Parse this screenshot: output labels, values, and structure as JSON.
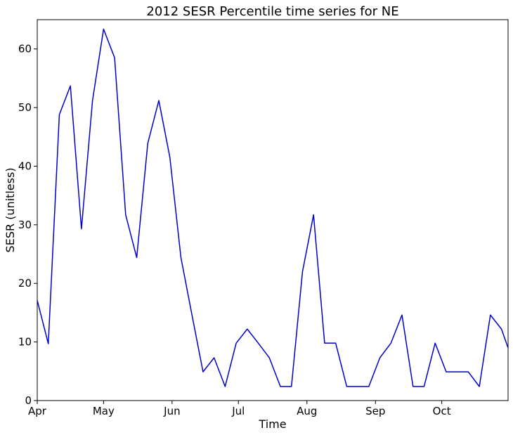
{
  "chart_data": {
    "type": "line",
    "title": "2012 SESR Percentile time series for NE",
    "xlabel": "Time",
    "ylabel": "SESR (unitless)",
    "ylim": [
      0,
      65
    ],
    "xlim": [
      "2012-04-01",
      "2012-10-31"
    ],
    "grid": false,
    "line_color": "#0000cc",
    "x_ticks": [
      {
        "label": "Apr",
        "date": "2012-04-01"
      },
      {
        "label": "May",
        "date": "2012-05-01"
      },
      {
        "label": "Jun",
        "date": "2012-06-01"
      },
      {
        "label": "Jul",
        "date": "2012-07-01"
      },
      {
        "label": "Aug",
        "date": "2012-08-01"
      },
      {
        "label": "Sep",
        "date": "2012-09-01"
      },
      {
        "label": "Oct",
        "date": "2012-10-01"
      }
    ],
    "y_ticks": [
      0,
      10,
      20,
      30,
      40,
      50,
      60
    ],
    "x": [
      "2012-04-01",
      "2012-04-06",
      "2012-04-11",
      "2012-04-16",
      "2012-04-21",
      "2012-04-26",
      "2012-05-01",
      "2012-05-06",
      "2012-05-11",
      "2012-05-16",
      "2012-05-21",
      "2012-05-26",
      "2012-05-31",
      "2012-06-05",
      "2012-06-10",
      "2012-06-15",
      "2012-06-20",
      "2012-06-25",
      "2012-06-30",
      "2012-07-05",
      "2012-07-10",
      "2012-07-15",
      "2012-07-20",
      "2012-07-25",
      "2012-07-30",
      "2012-08-04",
      "2012-08-09",
      "2012-08-14",
      "2012-08-19",
      "2012-08-24",
      "2012-08-29",
      "2012-09-03",
      "2012-09-08",
      "2012-09-13",
      "2012-09-18",
      "2012-09-23",
      "2012-09-28",
      "2012-10-03",
      "2012-10-08",
      "2012-10-13",
      "2012-10-18",
      "2012-10-23",
      "2012-10-28",
      "2012-10-31"
    ],
    "values": [
      17.1,
      9.7,
      48.8,
      53.7,
      29.3,
      51.2,
      63.4,
      58.5,
      31.7,
      24.4,
      43.9,
      51.2,
      41.5,
      24.4,
      14.6,
      4.9,
      7.3,
      2.4,
      9.8,
      12.2,
      9.8,
      7.3,
      2.4,
      2.4,
      22.0,
      31.7,
      9.8,
      9.8,
      2.4,
      2.4,
      2.4,
      7.3,
      9.8,
      14.6,
      2.4,
      2.4,
      9.8,
      4.9,
      4.9,
      4.9,
      2.4,
      14.6,
      12.2,
      9.0
    ]
  }
}
